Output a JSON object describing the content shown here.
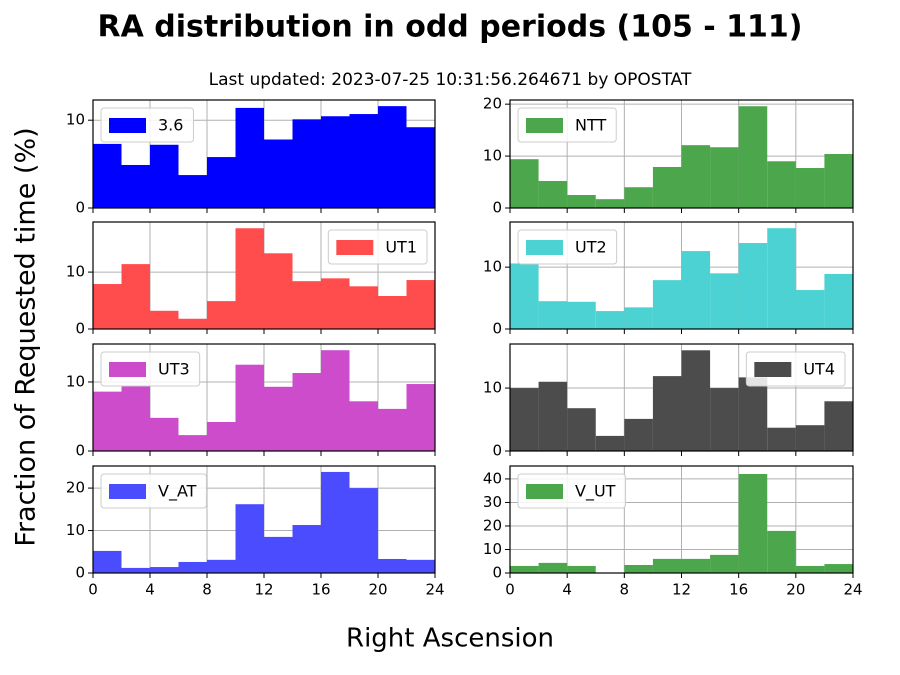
{
  "title": "RA distribution in odd periods (105 - 111)",
  "subtitle": "Last updated: 2023-07-25 10:31:56.264671 by OPOSTAT",
  "xlabel": "Right Ascension",
  "ylabel": "Fraction of Requested time (%)",
  "chart_data": [
    {
      "type": "histogram",
      "name": "3.6",
      "color": "#0000ff",
      "bins": [
        0,
        2,
        4,
        6,
        8,
        10,
        12,
        14,
        16,
        18,
        20,
        22,
        24
      ],
      "values": [
        7.3,
        4.9,
        7.2,
        3.75,
        5.8,
        11.4,
        7.8,
        10.1,
        10.45,
        10.7,
        11.6,
        9.2
      ],
      "xlim": [
        0,
        24
      ],
      "xticks": [
        0,
        4,
        8,
        12,
        16,
        20,
        24
      ],
      "show_xtick_labels": false,
      "ylim": [
        0,
        12.3
      ],
      "yticks": [
        0,
        10
      ],
      "grid": true,
      "legend": "upper left"
    },
    {
      "type": "histogram",
      "name": "NTT",
      "color": "#4ca64c",
      "bins": [
        0,
        2,
        4,
        6,
        8,
        10,
        12,
        14,
        16,
        18,
        20,
        22,
        24
      ],
      "values": [
        9.4,
        5.2,
        2.5,
        1.7,
        4.0,
        7.9,
        12.1,
        11.7,
        19.6,
        9.0,
        7.7,
        10.4
      ],
      "xlim": [
        0,
        24
      ],
      "xticks": [
        0,
        4,
        8,
        12,
        16,
        20,
        24
      ],
      "show_xtick_labels": false,
      "ylim": [
        0,
        20.8
      ],
      "yticks": [
        0,
        10,
        20
      ],
      "grid": true,
      "legend": "upper left"
    },
    {
      "type": "histogram",
      "name": "UT1",
      "color": "#ff4c4c",
      "bins": [
        0,
        2,
        4,
        6,
        8,
        10,
        12,
        14,
        16,
        18,
        20,
        22,
        24
      ],
      "values": [
        7.9,
        11.4,
        3.2,
        1.8,
        4.9,
        17.7,
        13.3,
        8.4,
        8.9,
        7.5,
        5.8,
        8.6
      ],
      "xlim": [
        0,
        24
      ],
      "xticks": [
        0,
        4,
        8,
        12,
        16,
        20,
        24
      ],
      "show_xtick_labels": false,
      "ylim": [
        0,
        18.8
      ],
      "yticks": [
        0,
        10
      ],
      "grid": true,
      "legend": "upper right"
    },
    {
      "type": "histogram",
      "name": "UT2",
      "color": "#4cd2d2",
      "bins": [
        0,
        2,
        4,
        6,
        8,
        10,
        12,
        14,
        16,
        18,
        20,
        22,
        24
      ],
      "values": [
        10.6,
        4.5,
        4.4,
        2.9,
        3.5,
        7.9,
        12.6,
        9.0,
        13.9,
        16.3,
        6.3,
        8.9
      ],
      "xlim": [
        0,
        24
      ],
      "xticks": [
        0,
        4,
        8,
        12,
        16,
        20,
        24
      ],
      "show_xtick_labels": false,
      "ylim": [
        0,
        17.3
      ],
      "yticks": [
        0,
        10
      ],
      "grid": true,
      "legend": "upper left"
    },
    {
      "type": "histogram",
      "name": "UT3",
      "color": "#cc4ccc",
      "bins": [
        0,
        2,
        4,
        6,
        8,
        10,
        12,
        14,
        16,
        18,
        20,
        22,
        24
      ],
      "values": [
        8.6,
        9.4,
        4.8,
        2.3,
        4.2,
        12.5,
        9.3,
        11.3,
        14.6,
        7.2,
        6.1,
        9.7
      ],
      "xlim": [
        0,
        24
      ],
      "xticks": [
        0,
        4,
        8,
        12,
        16,
        20,
        24
      ],
      "show_xtick_labels": false,
      "ylim": [
        0,
        15.5
      ],
      "yticks": [
        0,
        10
      ],
      "grid": true,
      "legend": "upper left"
    },
    {
      "type": "histogram",
      "name": "UT4",
      "color": "#4c4c4c",
      "bins": [
        0,
        2,
        4,
        6,
        8,
        10,
        12,
        14,
        16,
        18,
        20,
        22,
        24
      ],
      "values": [
        10.0,
        11.0,
        6.8,
        2.4,
        5.1,
        11.9,
        16.0,
        10.0,
        11.7,
        3.7,
        4.1,
        7.9
      ],
      "xlim": [
        0,
        24
      ],
      "xticks": [
        0,
        4,
        8,
        12,
        16,
        20,
        24
      ],
      "show_xtick_labels": false,
      "ylim": [
        0,
        17.0
      ],
      "yticks": [
        0,
        10
      ],
      "grid": true,
      "legend": "upper right"
    },
    {
      "type": "histogram",
      "name": "V_AT",
      "color": "#4c4cff",
      "bins": [
        0,
        2,
        4,
        6,
        8,
        10,
        12,
        14,
        16,
        18,
        20,
        22,
        24
      ],
      "values": [
        5.2,
        1.2,
        1.4,
        2.6,
        3.1,
        16.2,
        8.5,
        11.3,
        23.8,
        20.0,
        3.3,
        3.1
      ],
      "xlim": [
        0,
        24
      ],
      "xticks": [
        0,
        4,
        8,
        12,
        16,
        20,
        24
      ],
      "show_xtick_labels": true,
      "ylim": [
        0,
        25.2
      ],
      "yticks": [
        0,
        10,
        20
      ],
      "grid": true,
      "legend": "upper left"
    },
    {
      "type": "histogram",
      "name": "V_UT",
      "color": "#4ca64c",
      "bins": [
        0,
        2,
        4,
        6,
        8,
        10,
        12,
        14,
        16,
        18,
        20,
        22,
        24
      ],
      "values": [
        3.0,
        4.3,
        3.0,
        0,
        3.4,
        6.0,
        6.0,
        7.7,
        42.1,
        17.9,
        3.0,
        3.8
      ],
      "xlim": [
        0,
        24
      ],
      "xticks": [
        0,
        4,
        8,
        12,
        16,
        20,
        24
      ],
      "show_xtick_labels": true,
      "ylim": [
        0,
        45.5
      ],
      "yticks": [
        0,
        10,
        20,
        30,
        40
      ],
      "grid": true,
      "legend": "upper left"
    }
  ]
}
